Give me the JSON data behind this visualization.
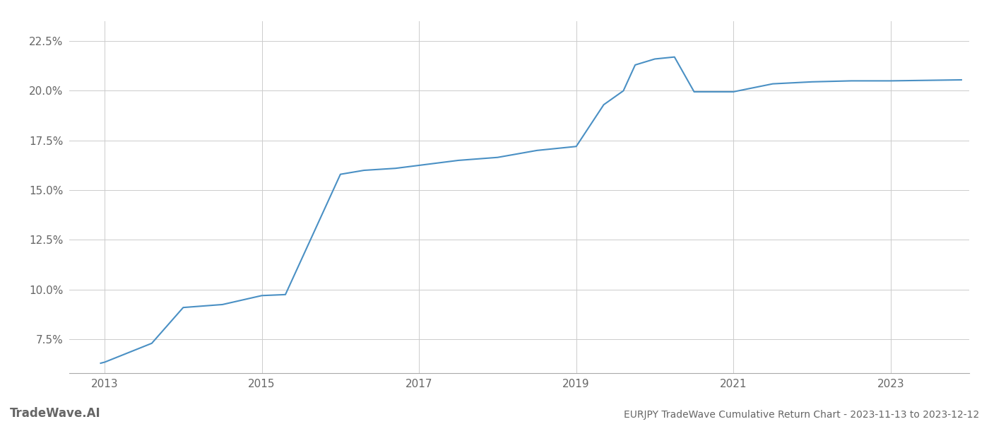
{
  "title": "EURJPY TradeWave Cumulative Return Chart - 2023-11-13 to 2023-12-12",
  "watermark": "TradeWave.AI",
  "line_color": "#4a90c4",
  "background_color": "#ffffff",
  "grid_color": "#cccccc",
  "x_years": [
    2012.95,
    2013.0,
    2013.6,
    2014.0,
    2014.5,
    2015.0,
    2015.3,
    2016.0,
    2016.3,
    2016.7,
    2017.0,
    2017.5,
    2018.0,
    2018.5,
    2019.0,
    2019.35,
    2019.6,
    2019.75,
    2020.0,
    2020.25,
    2020.5,
    2021.0,
    2021.5,
    2022.0,
    2022.5,
    2023.0,
    2023.9
  ],
  "y_values": [
    6.3,
    6.35,
    7.3,
    9.1,
    9.25,
    9.7,
    9.75,
    15.8,
    16.0,
    16.1,
    16.25,
    16.5,
    16.65,
    17.0,
    17.2,
    19.3,
    20.0,
    21.3,
    21.6,
    21.7,
    19.95,
    19.95,
    20.35,
    20.45,
    20.5,
    20.5,
    20.55
  ],
  "xlim": [
    2012.55,
    2024.0
  ],
  "ylim": [
    5.8,
    23.5
  ],
  "xticks": [
    2013,
    2015,
    2017,
    2019,
    2021,
    2023
  ],
  "yticks": [
    7.5,
    10.0,
    12.5,
    15.0,
    17.5,
    20.0,
    22.5
  ],
  "ytick_labels": [
    "7.5%",
    "10.0%",
    "12.5%",
    "15.0%",
    "17.5%",
    "20.0%",
    "22.5%"
  ],
  "line_width": 1.5,
  "tick_label_color": "#666666",
  "axis_label_fontsize": 11,
  "watermark_fontsize": 12,
  "footer_fontsize": 10
}
